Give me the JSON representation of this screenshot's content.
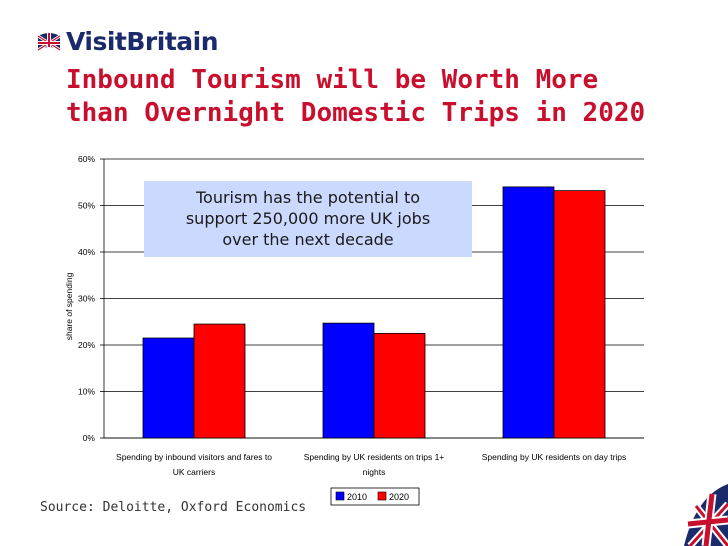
{
  "brand": {
    "name": "VisitBritain",
    "flag_icon": "union-jack-icon"
  },
  "title_lines": [
    "Inbound Tourism will be Worth More",
    "than Overnight Domestic Trips in 2020"
  ],
  "callout_lines": [
    "Tourism has the potential to",
    "support 250,000 more UK jobs",
    "over the next decade"
  ],
  "source": "Source: Deloitte, Oxford Economics",
  "colors": {
    "title": "#c8102e",
    "series_2010": "#0000ff",
    "series_2020": "#ff0000",
    "callout_bg": "#ccd9ff"
  },
  "chart_data": {
    "type": "bar",
    "categories": [
      [
        "Spending by inbound visitors and fares to",
        "UK carriers"
      ],
      [
        "Spending by UK residents on trips 1+",
        "nights"
      ],
      [
        "Spending by UK residents on day trips"
      ]
    ],
    "series": [
      {
        "name": "2010",
        "values": [
          21.5,
          24.7,
          54.0
        ]
      },
      {
        "name": "2020",
        "values": [
          24.5,
          22.5,
          53.2
        ]
      }
    ],
    "ylabel": "share of spending",
    "ylim": [
      0,
      60
    ],
    "yticks": [
      0,
      10,
      20,
      30,
      40,
      50,
      60
    ],
    "ytick_labels": [
      "0%",
      "10%",
      "20%",
      "30%",
      "40%",
      "50%",
      "60%"
    ],
    "grid": true,
    "legend": "bottom"
  }
}
